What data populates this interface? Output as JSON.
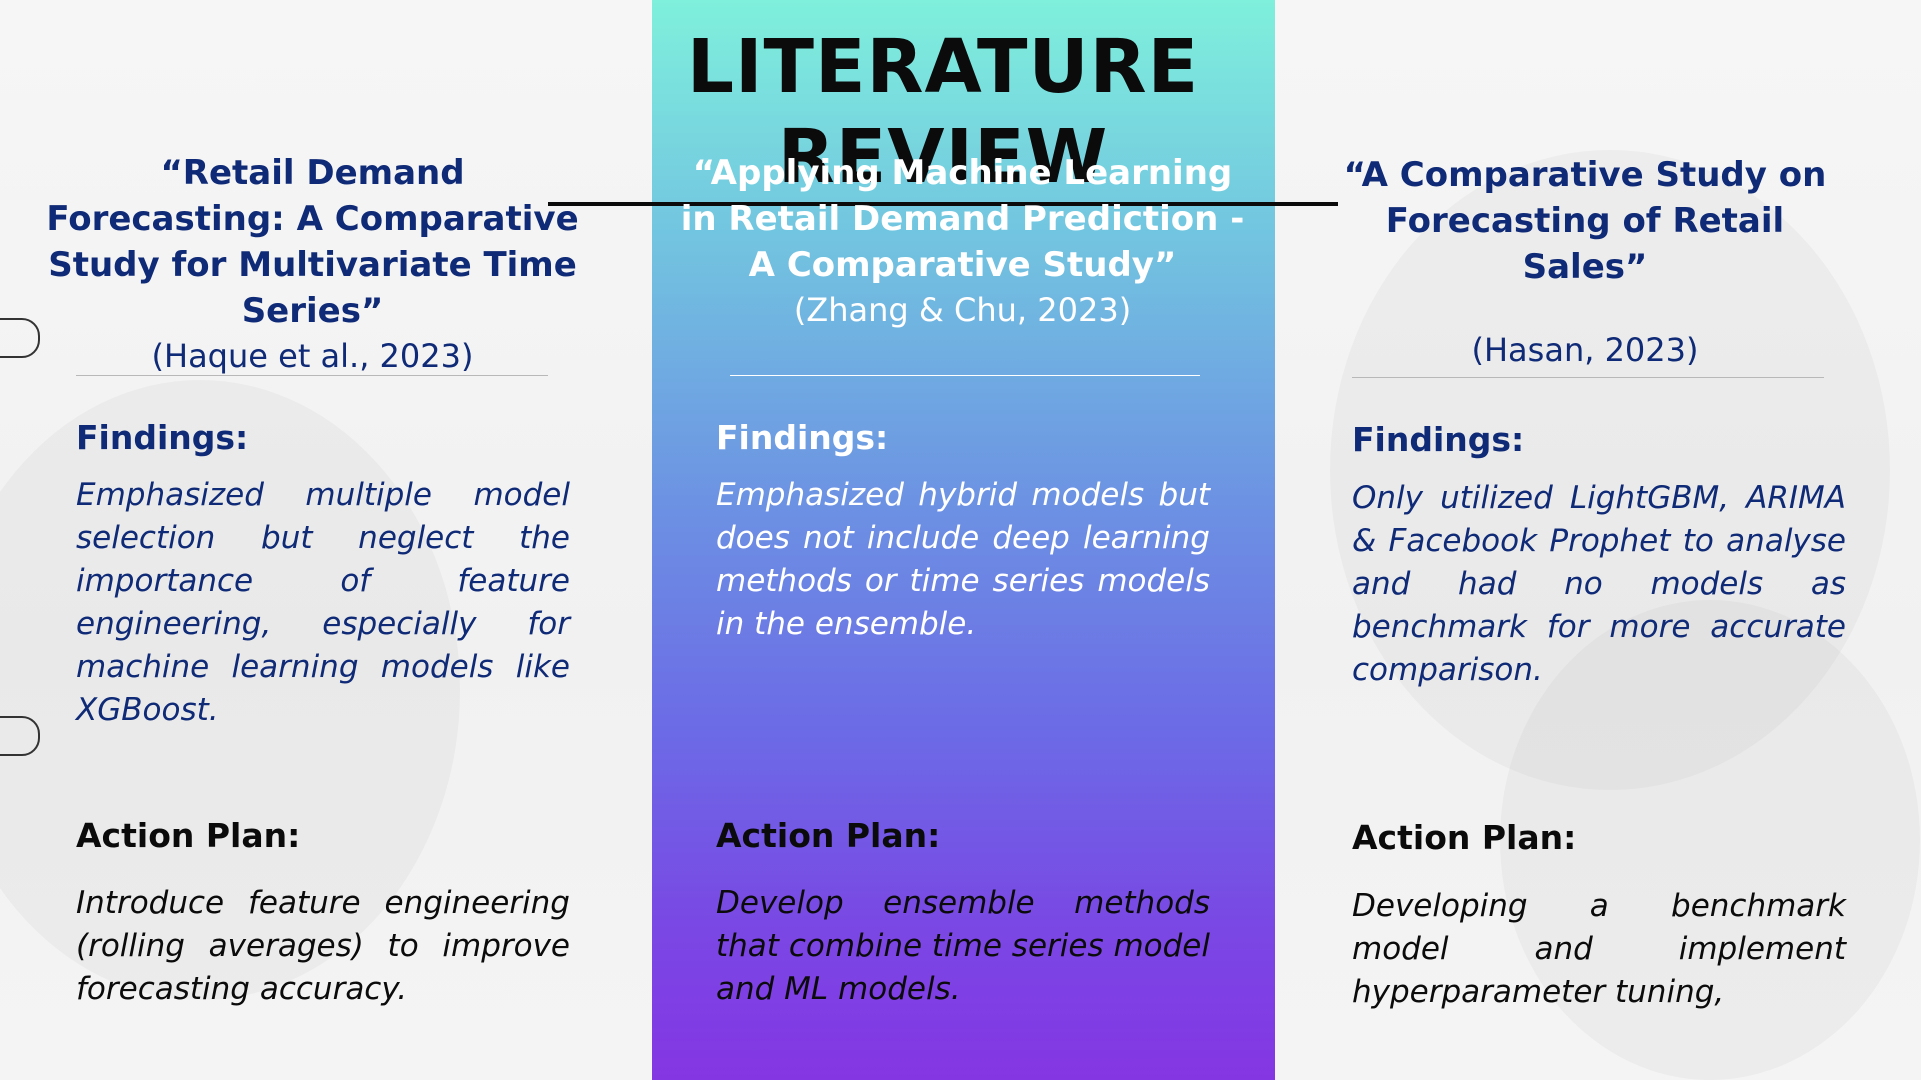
{
  "slide": {
    "title": "LITERATURE REVIEW",
    "columns": [
      {
        "ref_title": "“Retail Demand Forecasting: A Comparative Study for Multivariate Time Series”",
        "citation": "(Haque et al., 2023)",
        "findings_label": "Findings:",
        "findings_text": "Emphasized multiple model selection but neglect the importance of feature engineering, especially for machine learning models like XGBoost.",
        "action_label": "Action Plan:",
        "action_text": "Introduce feature engineering (rolling averages) to improve forecasting accuracy."
      },
      {
        "ref_title": "“Applying Machine Learning in Retail Demand Prediction - A Comparative Study”",
        "citation": "(Zhang & Chu, 2023)",
        "findings_label": "Findings:",
        "findings_text": "Emphasized hybrid models but does not include deep learning methods or time series models in the ensemble.",
        "action_label": "Action Plan:",
        "action_text": "Develop ensemble methods that combine time series model and ML models."
      },
      {
        "ref_title": "“A Comparative Study on Forecasting of Retail Sales”",
        "citation": "(Hasan, 2023)",
        "findings_label": "Findings:",
        "findings_text": "Only utilized LightGBM, ARIMA & Facebook Prophet to analyse and had no models as benchmark for more accurate comparison.",
        "action_label": "Action Plan:",
        "action_text": "Developing a benchmark model and implement hyperparameter tuning,"
      }
    ]
  },
  "colors": {
    "navy_text": "#0f2a76",
    "panel_top": "#7ff0dc",
    "panel_bottom": "#8436e3"
  }
}
